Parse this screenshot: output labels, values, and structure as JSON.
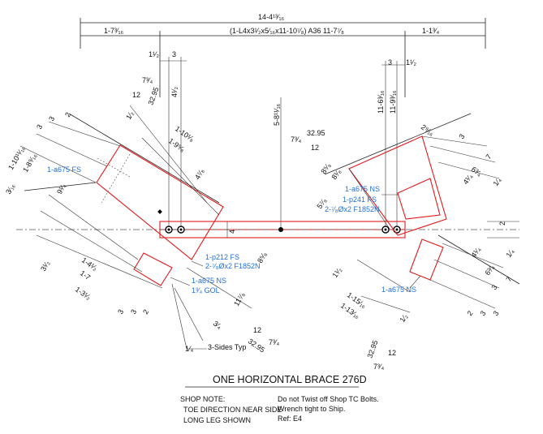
{
  "overall": {
    "length": "14-4¹³⁄₁₆",
    "left": "1-7³⁄₁₆",
    "member": "(1-L4x3¹⁄₂x5⁄₁₆x11-10⁷⁄₈)  A36  11-7⁷⁄₈",
    "right": "1-1³⁄₄"
  },
  "top_dims": {
    "l_1_5": "1¹⁄₂",
    "l_3": "3",
    "l_4_5": "4¹⁄₂",
    "center": "5-8¹¹⁄₁₆",
    "r_3": "3",
    "r_1_5": "1¹⁄₂",
    "r_116": "11-6³⁄₁₆",
    "r_119": "11-9³⁄₁₆"
  },
  "left_gusset": {
    "bevel_a": "7³⁄₄",
    "bevel_b": "12",
    "bevel_c": "32.95",
    "d_2": "2",
    "d_1_2": "1⁄₂",
    "d_3a": "3",
    "d_3b": "3",
    "d_1013": "1-10¹¹⁄₁₆",
    "d_18": "1-8⁹⁄₁₆",
    "d_110": "1-10¹⁄₈",
    "d_19": "1-9⁵⁄₈",
    "d_4": "4⁷⁄₈",
    "d_9": "9¹⁄₄",
    "d_3_16": "3⁄₁₆",
    "d_3_5": "3¹⁄₂",
    "d_141": "1-4¹⁄₂",
    "d_17": "1-7",
    "d_131": "1-3¹⁄₂",
    "d_b3a": "3",
    "d_b3b": "3",
    "d_b2": "2",
    "d_8": "8⁵⁄₈",
    "d_11": "11⁷⁄₈",
    "d_3_4": "3⁄₄",
    "label_fs": "1-a675 FS",
    "label_p212": "1-p212 FS",
    "label_bolts": "2-⁷⁄₈Øx2 F1852N",
    "label_ns": "1-a675 NS",
    "label_gol": "1³⁄₄ GOL",
    "weld": "3-Sides Typ",
    "weld_size": "1⁄₄",
    "bot_12": "12",
    "bot_73": "7³⁄₄",
    "bot_329": "32.95"
  },
  "right_gusset": {
    "bevel_a": "7³⁄₄",
    "bevel_b": "12",
    "bevel_c": "32.95",
    "d_29": "2⁹⁄₁₆",
    "d_3": "3",
    "d_7": "7",
    "d_6": "6³⁄₄",
    "d_4": "4¹⁄₄",
    "d_1_4": "1⁄₄",
    "d_8a": "8⁵⁄₈",
    "d_8b": "8¹⁄₈",
    "d_5": "5⁷⁄₈",
    "label_ns": "1-a675 NS",
    "label_p241": "1-p241 FS",
    "label_bolts": "2-⁷⁄₈Øx2 F1852N",
    "label_ns2": "1-a675 NS",
    "d_41": "4¹⁄₄",
    "d_63": "6³⁄₄",
    "d_31": "3",
    "d_7b": "7",
    "d_1_4b": "1⁄₄",
    "d_1_5": "1¹⁄₂",
    "d_115": "1-15⁄₁₆",
    "d_113": "1-13⁄₁₆",
    "d_2b": "2",
    "d_3b": "3",
    "d_3c": "3",
    "d_1_2": "1⁄₂",
    "bot_329": "32.95",
    "bot_12": "12",
    "bot_73": "7³⁄₄"
  },
  "member_dims": {
    "leg": "4",
    "right_2": "2"
  },
  "title": "ONE HORIZONTAL BRACE 276D",
  "notes": {
    "shop_note": "SHOP NOTE:",
    "toe": "TOE DIRECTION NEAR SIDE",
    "long_leg": "LONG LEG SHOWN",
    "twist": "Do not Twist off Shop TC Bolts.",
    "wrench": "Wrench tight to Ship.",
    "ref": "Ref: E4"
  }
}
